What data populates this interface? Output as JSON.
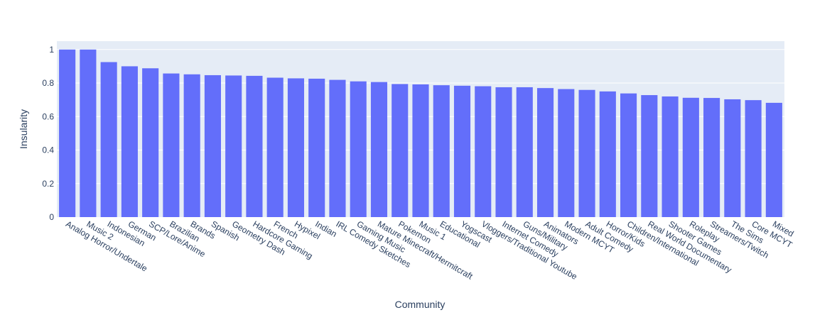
{
  "chart_data": {
    "type": "bar",
    "title": "",
    "xlabel": "Community",
    "ylabel": "Insularity",
    "ylim": [
      0,
      1.05
    ],
    "yticks": [
      0,
      0.2,
      0.4,
      0.6,
      0.8,
      1
    ],
    "ytick_labels": [
      "0",
      "0.2",
      "0.4",
      "0.6",
      "0.8",
      "1"
    ],
    "grid": true,
    "legend": "none",
    "colors": {
      "bar": "#636efa",
      "plot_bg": "#e5ecf6",
      "grid": "#ffffff",
      "text": "#2a3f5f"
    },
    "categories": [
      "Analog Horror/Undertale",
      "Music 2",
      "Indonesian",
      "German",
      "SCP/Lore/Anime",
      "Brazilian",
      "Brands",
      "Spanish",
      "Geometry Dash",
      "Hardcore Gaming",
      "French",
      "Hypixel",
      "Indian",
      "IRL Comedy Sketches",
      "Gaming Music",
      "Mature Minecraft/Hermitcraft",
      "Pokemon",
      "Music 1",
      "Educational",
      "Yogscast",
      "Vloggers/Traditional Youtube",
      "Internet Comedy",
      "Guns/Military",
      "Animators",
      "Modern MCYT",
      "Adult Comedy",
      "Horror/Kids",
      "Children/International",
      "Real World Documentary",
      "Shooter Games",
      "Roleplay",
      "Streamers/Twitch",
      "The Sims",
      "Core MCYT",
      "Mixed"
    ],
    "values": [
      1.0,
      1.0,
      0.925,
      0.9,
      0.888,
      0.857,
      0.852,
      0.847,
      0.845,
      0.843,
      0.832,
      0.828,
      0.826,
      0.819,
      0.81,
      0.806,
      0.794,
      0.792,
      0.787,
      0.784,
      0.781,
      0.775,
      0.775,
      0.77,
      0.764,
      0.759,
      0.75,
      0.738,
      0.728,
      0.72,
      0.712,
      0.711,
      0.703,
      0.698,
      0.682
    ]
  }
}
